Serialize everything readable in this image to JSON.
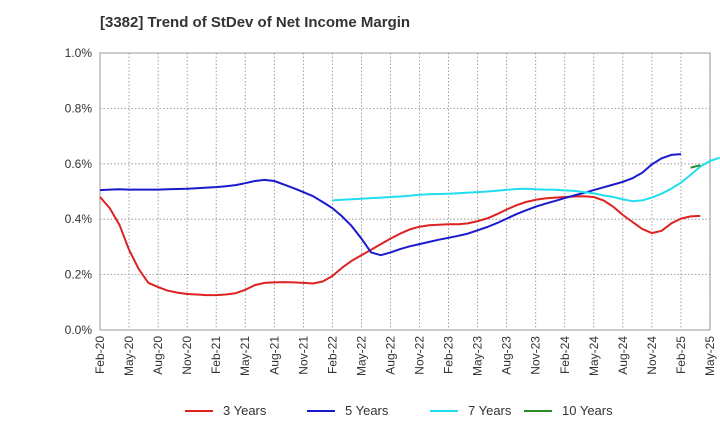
{
  "chart_data": {
    "type": "line",
    "title": "[3382]  Trend of StDev of Net Income Margin",
    "y_tick_labels": [
      "0.0%",
      "0.2%",
      "0.4%",
      "0.6%",
      "0.8%",
      "1.0%"
    ],
    "ylim": [
      0,
      1.0
    ],
    "x_tick_labels": [
      "Feb-20",
      "May-20",
      "Aug-20",
      "Nov-20",
      "Feb-21",
      "May-21",
      "Aug-21",
      "Nov-21",
      "Feb-22",
      "May-22",
      "Aug-22",
      "Nov-22",
      "Feb-23",
      "May-23",
      "Aug-23",
      "Nov-23",
      "Feb-24",
      "May-24",
      "Aug-24",
      "Nov-24",
      "Feb-25",
      "May-25"
    ],
    "grid": true,
    "legend_position": "bottom",
    "series": [
      {
        "name": "3 Years",
        "color": "#dd2222",
        "start": 0,
        "values": [
          0.48,
          0.44,
          0.38,
          0.29,
          0.22,
          0.17,
          0.155,
          0.142,
          0.135,
          0.13,
          0.128,
          0.126,
          0.126,
          0.128,
          0.133,
          0.145,
          0.162,
          0.17,
          0.172,
          0.173,
          0.172,
          0.17,
          0.168,
          0.175,
          0.195,
          0.225,
          0.25,
          0.27,
          0.29,
          0.31,
          0.33,
          0.348,
          0.363,
          0.373,
          0.378,
          0.38,
          0.382,
          0.382,
          0.385,
          0.393,
          0.403,
          0.418,
          0.435,
          0.45,
          0.462,
          0.47,
          0.475,
          0.478,
          0.48,
          0.482,
          0.483,
          0.48,
          0.468,
          0.445,
          0.415,
          0.39,
          0.365,
          0.35,
          0.358,
          0.385,
          0.402,
          0.41,
          0.412
        ]
      },
      {
        "name": "5 Years",
        "color": "#1a1acc",
        "start": 0,
        "values": [
          0.505,
          0.507,
          0.508,
          0.507,
          0.507,
          0.507,
          0.507,
          0.508,
          0.509,
          0.51,
          0.512,
          0.514,
          0.516,
          0.519,
          0.523,
          0.53,
          0.538,
          0.542,
          0.538,
          0.525,
          0.512,
          0.498,
          0.483,
          0.462,
          0.44,
          0.41,
          0.375,
          0.33,
          0.28,
          0.27,
          0.28,
          0.292,
          0.302,
          0.31,
          0.318,
          0.326,
          0.333,
          0.34,
          0.348,
          0.36,
          0.372,
          0.386,
          0.402,
          0.418,
          0.432,
          0.445,
          0.456,
          0.466,
          0.476,
          0.486,
          0.495,
          0.505,
          0.515,
          0.525,
          0.535,
          0.548,
          0.568,
          0.598,
          0.62,
          0.632,
          0.635
        ]
      },
      {
        "name": "7 Years",
        "color": "#22ddee",
        "start": 24,
        "values": [
          0.468,
          0.47,
          0.472,
          0.474,
          0.476,
          0.478,
          0.48,
          0.482,
          0.485,
          0.488,
          0.49,
          0.491,
          0.492,
          0.494,
          0.496,
          0.498,
          0.5,
          0.503,
          0.506,
          0.509,
          0.51,
          0.508,
          0.507,
          0.506,
          0.504,
          0.502,
          0.498,
          0.493,
          0.486,
          0.48,
          0.472,
          0.465,
          0.468,
          0.478,
          0.492,
          0.51,
          0.532,
          0.56,
          0.59,
          0.61,
          0.622
        ]
      },
      {
        "name": "10 Years",
        "color": "#2a8a2a",
        "start": 61,
        "values": [
          0.586,
          0.595
        ]
      }
    ]
  }
}
